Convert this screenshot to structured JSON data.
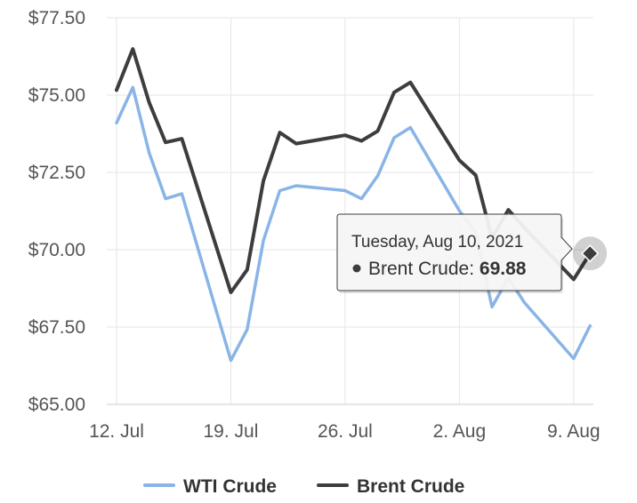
{
  "chart_data": {
    "type": "line",
    "x": [
      "2021-07-12",
      "2021-07-13",
      "2021-07-14",
      "2021-07-15",
      "2021-07-16",
      "2021-07-19",
      "2021-07-20",
      "2021-07-21",
      "2021-07-22",
      "2021-07-23",
      "2021-07-26",
      "2021-07-27",
      "2021-07-28",
      "2021-07-29",
      "2021-07-30",
      "2021-08-02",
      "2021-08-03",
      "2021-08-04",
      "2021-08-05",
      "2021-08-06",
      "2021-08-09",
      "2021-08-10"
    ],
    "x_ticks": [
      "12. Jul",
      "19. Jul",
      "26. Jul",
      "2. Aug",
      "9. Aug"
    ],
    "y_ticks": [
      "$65.00",
      "$67.50",
      "$70.00",
      "$72.50",
      "$75.00",
      "$77.50"
    ],
    "ylim": [
      65,
      77.5
    ],
    "series": [
      {
        "name": "WTI Crude",
        "color": "#89b4e6",
        "values": [
          74.1,
          75.25,
          73.13,
          71.65,
          71.81,
          66.42,
          67.42,
          70.3,
          71.91,
          72.07,
          71.91,
          71.65,
          72.39,
          73.62,
          73.95,
          71.26,
          70.56,
          68.15,
          69.09,
          68.28,
          66.48,
          67.54
        ]
      },
      {
        "name": "Brent Crude",
        "color": "#3d3d3f",
        "values": [
          75.16,
          76.49,
          74.76,
          73.47,
          73.59,
          68.62,
          69.35,
          72.23,
          73.79,
          73.43,
          73.7,
          73.52,
          73.84,
          75.09,
          75.41,
          72.89,
          72.41,
          70.38,
          71.29,
          70.7,
          69.04,
          69.88
        ]
      }
    ],
    "legend_position": "bottom-center",
    "tooltip": {
      "date": "Tuesday, Aug 10, 2021",
      "series": "Brent Crude",
      "value": "69.88"
    }
  }
}
